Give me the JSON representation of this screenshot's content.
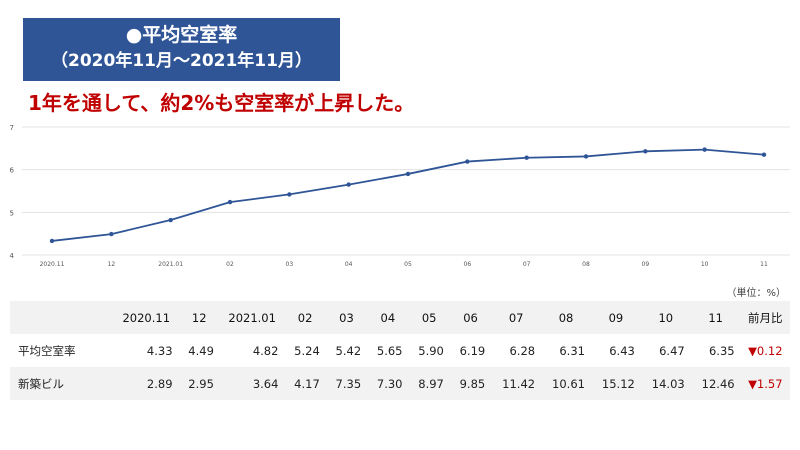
{
  "title": {
    "line1": "●平均空室率",
    "line2": "（2020年11月～2021年11月）"
  },
  "headline": "1年を通して、約2%も空室率が上昇した。",
  "unit_note": "（単位：%）",
  "chart_data": {
    "type": "line",
    "categories": [
      "2020.11",
      "12",
      "2021.01",
      "02",
      "03",
      "04",
      "05",
      "06",
      "07",
      "08",
      "09",
      "10",
      "11"
    ],
    "series": [
      {
        "values": [
          4.33,
          4.49,
          4.82,
          5.24,
          5.42,
          5.65,
          5.9,
          6.19,
          6.28,
          6.31,
          6.43,
          6.47,
          6.35
        ],
        "color": "#2f5597"
      }
    ],
    "ylim": [
      4,
      7
    ],
    "yticks": [
      4,
      5,
      6,
      7
    ],
    "grid": true
  },
  "table": {
    "header": [
      "",
      "2020.11",
      "12",
      "2021.01",
      "02",
      "03",
      "04",
      "05",
      "06",
      "07",
      "08",
      "09",
      "10",
      "11",
      "前月比"
    ],
    "rows": [
      {
        "label": "平均空室率",
        "values": [
          "4.33",
          "4.49",
          "4.82",
          "5.24",
          "5.42",
          "5.65",
          "5.90",
          "6.19",
          "6.28",
          "6.31",
          "6.43",
          "6.47",
          "6.35"
        ],
        "change": "▼0.12"
      },
      {
        "label": "新築ビル",
        "values": [
          "2.89",
          "2.95",
          "3.64",
          "4.17",
          "7.35",
          "7.30",
          "8.97",
          "9.85",
          "11.42",
          "10.61",
          "15.12",
          "14.03",
          "12.46"
        ],
        "change": "▼1.57"
      }
    ]
  },
  "colors": {
    "title_bg": "#2f5597",
    "headline": "#c00000",
    "line": "#2f5597",
    "down": "#c00000"
  }
}
